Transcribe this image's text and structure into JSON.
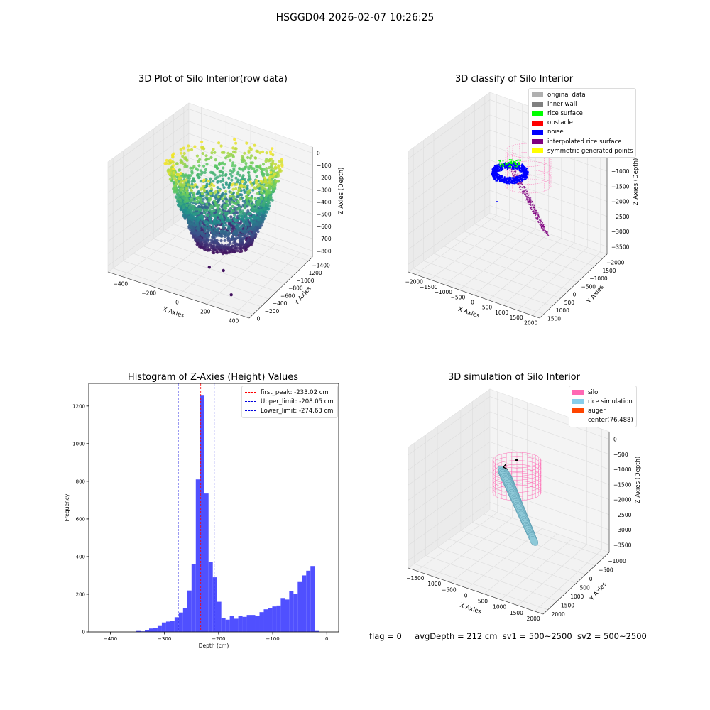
{
  "figure": {
    "title": "HSGGD04 2026-02-07 10:26:25",
    "status_line": {
      "flag": "flag = 0",
      "avg_depth": "avgDepth = 212 cm",
      "sv1": "sv1 = 500~2500",
      "sv2": "sv2 = 500~2500"
    }
  },
  "colors": {
    "histogram_bar": "#5050ff",
    "first_peak": "#ff0000",
    "limit_lines": "#0000dd",
    "silo": "#ff69b4",
    "rice_simulation": "#87ceeb",
    "auger": "#ff4500",
    "pane": "#f2f2f2"
  },
  "chart_data": [
    {
      "type": "scatter",
      "title": "3D Plot of Silo Interior(row data)",
      "projection": "3d",
      "xlabel": "X Axies",
      "ylabel": "Y Axies",
      "zlabel": "Z Axies (Depth)",
      "x_ticks": [
        "−400",
        "−200",
        "0",
        "200",
        "400"
      ],
      "y_ticks": [
        "0",
        "−200",
        "−400",
        "−600",
        "−800",
        "−1000",
        "−1200",
        "−1400"
      ],
      "z_ticks": [
        "0",
        "−100",
        "−200",
        "−300",
        "−400",
        "−500",
        "−600",
        "−700",
        "−800"
      ],
      "xlim": [
        -450,
        450
      ],
      "ylim": [
        -1450,
        50
      ],
      "zlim": [
        -850,
        30
      ],
      "colormap": "viridis (by depth)",
      "outlier_points": [
        {
          "x": 150,
          "y": -300,
          "z": -820
        },
        {
          "x": 60,
          "y": -200,
          "z": -830
        },
        {
          "x": 200,
          "y": -600,
          "z": -880
        }
      ]
    },
    {
      "type": "scatter",
      "title": "3D classify of Silo Interior",
      "projection": "3d",
      "xlabel": "X Axies",
      "ylabel": "Y Axies",
      "zlabel": "Z Axies (Depth)",
      "x_ticks": [
        "−2000",
        "−1500",
        "−1000",
        "−500",
        "0",
        "500",
        "1000",
        "1500",
        "2000"
      ],
      "y_ticks": [
        "1500",
        "1000",
        "500",
        "0",
        "−500",
        "−1000",
        "−1500",
        "−2000"
      ],
      "z_ticks": [
        "0",
        "−500",
        "−1000",
        "−1500",
        "−2000",
        "−2500",
        "−3000",
        "−3500"
      ],
      "xlim": [
        -2000,
        2000
      ],
      "ylim": [
        -2000,
        1500
      ],
      "zlim": [
        -3700,
        0
      ],
      "legend": {
        "position": "top-right",
        "entries": [
          {
            "label": "original data",
            "color": "#b0b0b0"
          },
          {
            "label": "inner wall",
            "color": "#808080"
          },
          {
            "label": "rice surface",
            "color": "#00ff00"
          },
          {
            "label": "obstacle",
            "color": "#ff0000"
          },
          {
            "label": "noise",
            "color": "#0000ff"
          },
          {
            "label": "interpolated rice surface",
            "color": "#800080"
          },
          {
            "label": "symmetric generated points",
            "color": "#ffff00"
          }
        ]
      }
    },
    {
      "type": "bar",
      "title": "Histogram of Z-Axies (Height) Values",
      "xlabel": "Depth (cm)",
      "ylabel": "Frequency",
      "xlim": [
        -440,
        22
      ],
      "ylim": [
        0,
        1320
      ],
      "x_ticks": [
        -400,
        -300,
        -200,
        -100,
        0
      ],
      "x_tick_labels": [
        "−400",
        "−300",
        "−200",
        "−100",
        "0"
      ],
      "y_ticks": [
        0,
        200,
        400,
        600,
        800,
        1000,
        1200
      ],
      "bin_start": -352,
      "bin_width": 7.85,
      "values": [
        5,
        3,
        10,
        18,
        20,
        35,
        50,
        55,
        60,
        78,
        103,
        125,
        220,
        360,
        810,
        1255,
        735,
        370,
        290,
        160,
        75,
        65,
        85,
        70,
        85,
        80,
        90,
        90,
        85,
        105,
        120,
        125,
        135,
        140,
        180,
        172,
        215,
        200,
        265,
        300,
        325,
        350,
        5
      ],
      "vlines": [
        {
          "label": "first_peak: -233.02 cm",
          "x": -233.02,
          "color": "#ff0000"
        },
        {
          "label": "Upper_limit: -208.05 cm",
          "x": -208.05,
          "color": "#0000dd"
        },
        {
          "label": "Lower_limit: -274.63 cm",
          "x": -274.63,
          "color": "#0000dd"
        }
      ],
      "legend": {
        "position": "top-right"
      }
    },
    {
      "type": "scatter",
      "title": "3D simulation of Silo Interior",
      "projection": "3d",
      "xlabel": "X Axies",
      "ylabel": "Y Axies",
      "zlabel": "Z Axies (Depth)",
      "x_ticks": [
        "−1500",
        "−1000",
        "−500",
        "0",
        "500",
        "1000",
        "1500",
        "2000"
      ],
      "y_ticks": [
        "2000",
        "1500",
        "1000",
        "500",
        "0",
        "−500",
        "−1000"
      ],
      "z_ticks": [
        "0",
        "−500",
        "−1000",
        "−1500",
        "−2000",
        "−2500",
        "−3000",
        "−3500"
      ],
      "xlim": [
        -1700,
        2000
      ],
      "ylim": [
        -1200,
        2200
      ],
      "zlim": [
        -3700,
        100
      ],
      "center": [
        76,
        488
      ],
      "legend": {
        "position": "top-right",
        "entries": [
          {
            "label": "silo",
            "color": "#ff69b4"
          },
          {
            "label": "rice simulation",
            "color": "#87ceeb"
          },
          {
            "label": "auger",
            "color": "#ff4500"
          },
          {
            "label": "center(76,488)",
            "color": "none"
          }
        ]
      }
    }
  ]
}
